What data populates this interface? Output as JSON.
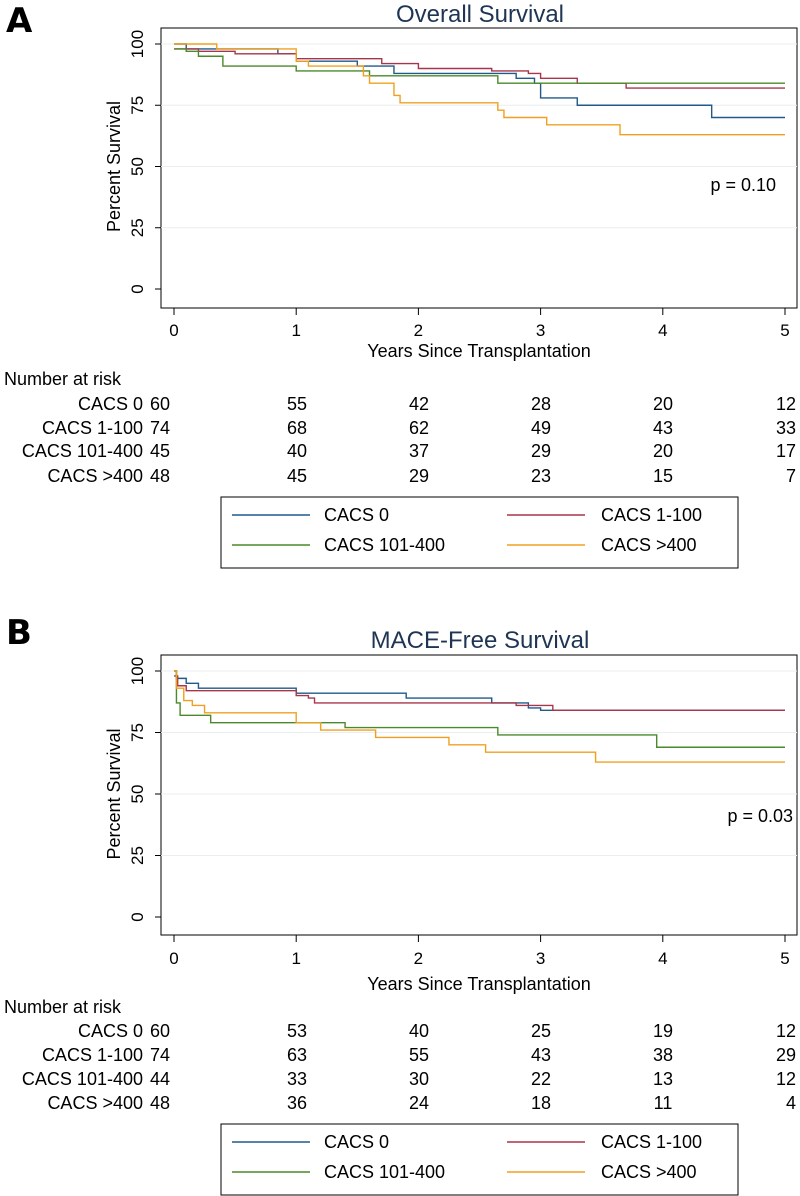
{
  "chart_data": [
    {
      "panel_label": "A",
      "type": "line",
      "subtype": "kaplan-meier",
      "title": "Overall Survival",
      "xlabel": "Years Since Transplantation",
      "ylabel": "Percent Survival",
      "xlim": [
        0,
        5
      ],
      "ylim": [
        0,
        100
      ],
      "xticks": [
        0,
        1,
        2,
        3,
        4,
        5
      ],
      "yticks": [
        0,
        25,
        50,
        75,
        100
      ],
      "grid": "horizontal",
      "annotation": "p = 0.10",
      "risk_table": {
        "header": "Number at risk",
        "rows": [
          {
            "label": "CACS 0",
            "values": [
              60,
              55,
              42,
              28,
              20,
              12
            ]
          },
          {
            "label": "CACS 1-100",
            "values": [
              74,
              68,
              62,
              49,
              43,
              33
            ]
          },
          {
            "label": "CACS 101-400",
            "values": [
              45,
              40,
              37,
              29,
              20,
              17
            ]
          },
          {
            "label": "CACS >400",
            "values": [
              48,
              45,
              29,
              23,
              15,
              7
            ]
          }
        ]
      },
      "legend": [
        {
          "name": "CACS 0",
          "color": "#1f5a8a"
        },
        {
          "name": "CACS 1-100",
          "color": "#a8364a"
        },
        {
          "name": "CACS 101-400",
          "color": "#4a8a2a"
        },
        {
          "name": "CACS >400",
          "color": "#f0a020"
        }
      ],
      "series": [
        {
          "name": "CACS 0",
          "color": "#1f5a8a",
          "points": [
            [
              0,
              100
            ],
            [
              0.1,
              98
            ],
            [
              0.4,
              98
            ],
            [
              0.8,
              98
            ],
            [
              0.85,
              96
            ],
            [
              1.0,
              93
            ],
            [
              1.4,
              93
            ],
            [
              1.5,
              91
            ],
            [
              1.8,
              88
            ],
            [
              2.7,
              88
            ],
            [
              2.8,
              86
            ],
            [
              2.95,
              84
            ],
            [
              3.0,
              78
            ],
            [
              3.3,
              75
            ],
            [
              3.8,
              75
            ],
            [
              4.4,
              70
            ],
            [
              5.0,
              70
            ]
          ]
        },
        {
          "name": "CACS 1-100",
          "color": "#a8364a",
          "points": [
            [
              0,
              98
            ],
            [
              0.2,
              97
            ],
            [
              0.5,
              96
            ],
            [
              1.0,
              94
            ],
            [
              1.5,
              94
            ],
            [
              1.7,
              92
            ],
            [
              2.0,
              90
            ],
            [
              2.5,
              90
            ],
            [
              2.6,
              89
            ],
            [
              2.9,
              88
            ],
            [
              3.0,
              86
            ],
            [
              3.3,
              84
            ],
            [
              3.7,
              82
            ],
            [
              5.0,
              82
            ]
          ]
        },
        {
          "name": "CACS 101-400",
          "color": "#4a8a2a",
          "points": [
            [
              0,
              98
            ],
            [
              0.1,
              97
            ],
            [
              0.2,
              95
            ],
            [
              0.35,
              95
            ],
            [
              0.4,
              91
            ],
            [
              0.95,
              91
            ],
            [
              1.0,
              89
            ],
            [
              1.5,
              89
            ],
            [
              1.6,
              87
            ],
            [
              2.1,
              87
            ],
            [
              2.6,
              87
            ],
            [
              2.65,
              84
            ],
            [
              5.0,
              84
            ]
          ]
        },
        {
          "name": "CACS >400",
          "color": "#f0a020",
          "points": [
            [
              0,
              100
            ],
            [
              0.3,
              100
            ],
            [
              0.35,
              98
            ],
            [
              0.5,
              98
            ],
            [
              0.9,
              98
            ],
            [
              1.0,
              93
            ],
            [
              1.1,
              91
            ],
            [
              1.5,
              91
            ],
            [
              1.55,
              87
            ],
            [
              1.6,
              84
            ],
            [
              1.7,
              84
            ],
            [
              1.8,
              79
            ],
            [
              1.85,
              76
            ],
            [
              2.6,
              76
            ],
            [
              2.65,
              73
            ],
            [
              2.7,
              70
            ],
            [
              3.0,
              70
            ],
            [
              3.05,
              67
            ],
            [
              3.6,
              67
            ],
            [
              3.65,
              63
            ],
            [
              5.0,
              63
            ]
          ]
        }
      ]
    },
    {
      "panel_label": "B",
      "type": "line",
      "subtype": "kaplan-meier",
      "title": "MACE-Free Survival",
      "xlabel": "Years Since Transplantation",
      "ylabel": "Percent Survival",
      "xlim": [
        0,
        5
      ],
      "ylim": [
        0,
        100
      ],
      "xticks": [
        0,
        1,
        2,
        3,
        4,
        5
      ],
      "yticks": [
        0,
        25,
        50,
        75,
        100
      ],
      "grid": "horizontal",
      "annotation": "p = 0.03",
      "risk_table": {
        "header": "Number at risk",
        "rows": [
          {
            "label": "CACS 0",
            "values": [
              60,
              53,
              40,
              25,
              19,
              12
            ]
          },
          {
            "label": "CACS 1-100",
            "values": [
              74,
              63,
              55,
              43,
              38,
              29
            ]
          },
          {
            "label": "CACS 101-400",
            "values": [
              44,
              33,
              30,
              22,
              13,
              12
            ]
          },
          {
            "label": "CACS >400",
            "values": [
              48,
              36,
              24,
              18,
              11,
              4
            ]
          }
        ]
      },
      "legend": [
        {
          "name": "CACS 0",
          "color": "#1f5a8a"
        },
        {
          "name": "CACS 1-100",
          "color": "#a8364a"
        },
        {
          "name": "CACS 101-400",
          "color": "#4a8a2a"
        },
        {
          "name": "CACS >400",
          "color": "#f0a020"
        }
      ],
      "series": [
        {
          "name": "CACS 0",
          "color": "#1f5a8a",
          "points": [
            [
              0,
              100
            ],
            [
              0.02,
              97
            ],
            [
              0.1,
              95
            ],
            [
              0.2,
              93
            ],
            [
              0.9,
              93
            ],
            [
              1.0,
              91
            ],
            [
              1.8,
              91
            ],
            [
              1.9,
              89
            ],
            [
              2.5,
              89
            ],
            [
              2.6,
              87
            ],
            [
              2.8,
              87
            ],
            [
              2.9,
              85
            ],
            [
              3.0,
              84
            ],
            [
              5.0,
              84
            ]
          ]
        },
        {
          "name": "CACS 1-100",
          "color": "#a8364a",
          "points": [
            [
              0,
              98
            ],
            [
              0.03,
              94
            ],
            [
              0.1,
              92
            ],
            [
              0.9,
              92
            ],
            [
              1.0,
              90
            ],
            [
              1.1,
              89
            ],
            [
              1.15,
              87
            ],
            [
              2.6,
              87
            ],
            [
              2.8,
              86
            ],
            [
              3.1,
              84
            ],
            [
              5.0,
              84
            ]
          ]
        },
        {
          "name": "CACS 101-400",
          "color": "#4a8a2a",
          "points": [
            [
              0,
              100
            ],
            [
              0.02,
              87
            ],
            [
              0.05,
              82
            ],
            [
              0.25,
              82
            ],
            [
              0.3,
              79
            ],
            [
              1.3,
              79
            ],
            [
              1.4,
              77
            ],
            [
              2.6,
              77
            ],
            [
              2.65,
              74
            ],
            [
              3.9,
              74
            ],
            [
              3.95,
              69
            ],
            [
              5.0,
              69
            ]
          ]
        },
        {
          "name": "CACS >400",
          "color": "#f0a020",
          "points": [
            [
              0,
              100
            ],
            [
              0.02,
              93
            ],
            [
              0.08,
              88
            ],
            [
              0.15,
              86
            ],
            [
              0.25,
              83
            ],
            [
              0.95,
              83
            ],
            [
              1.0,
              79
            ],
            [
              1.15,
              79
            ],
            [
              1.2,
              76
            ],
            [
              1.6,
              76
            ],
            [
              1.65,
              73
            ],
            [
              2.2,
              73
            ],
            [
              2.25,
              70
            ],
            [
              2.5,
              70
            ],
            [
              2.55,
              67
            ],
            [
              3.4,
              67
            ],
            [
              3.45,
              63
            ],
            [
              5.0,
              63
            ]
          ]
        }
      ]
    }
  ]
}
